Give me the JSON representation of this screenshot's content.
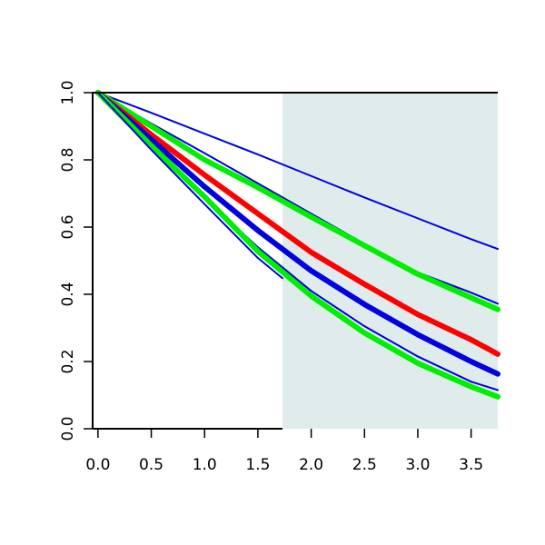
{
  "chart_data": {
    "type": "line",
    "title": "",
    "xlabel": "",
    "ylabel": "",
    "xlim": [
      -0.05,
      3.75
    ],
    "ylim": [
      0.0,
      1.0
    ],
    "x_ticks": [
      0.0,
      0.5,
      1.0,
      1.5,
      2.0,
      2.5,
      3.0,
      3.5
    ],
    "x_tick_labels": [
      "0.0",
      "0.5",
      "1.0",
      "1.5",
      "2.0",
      "2.5",
      "3.0",
      "3.5"
    ],
    "y_ticks": [
      0.0,
      0.2,
      0.4,
      0.6,
      0.8,
      1.0
    ],
    "y_tick_labels": [
      "0.0",
      "0.2",
      "0.4",
      "0.6",
      "0.8",
      "1.0"
    ],
    "shaded_region": {
      "x_from": 1.73,
      "x_to": 3.75,
      "color": "#e0ecec"
    },
    "colors": {
      "red": "#ff0000",
      "green": "#00ee00",
      "blue": "#0000e0"
    },
    "series": [
      {
        "color": "blue",
        "weight": "thin",
        "x": [
          0,
          0.5,
          1,
          1.5,
          2,
          2.5,
          3,
          3.5,
          3.75
        ],
        "y": [
          1.0,
          0.94,
          0.878,
          0.816,
          0.752,
          0.688,
          0.626,
          0.564,
          0.535
        ]
      },
      {
        "color": "blue",
        "weight": "thin",
        "x": [
          0,
          0.5,
          1,
          1.5,
          2,
          2.5,
          3,
          3.5,
          3.75
        ],
        "y": [
          1.0,
          0.908,
          0.82,
          0.73,
          0.64,
          0.55,
          0.465,
          0.405,
          0.372
        ]
      },
      {
        "color": "green",
        "weight": "thick",
        "x": [
          0,
          0.5,
          1,
          1.5,
          2,
          2.5,
          3,
          3.5,
          3.75
        ],
        "y": [
          1.0,
          0.9,
          0.8,
          0.718,
          0.63,
          0.545,
          0.46,
          0.39,
          0.355
        ]
      },
      {
        "color": "red",
        "weight": "thick",
        "x": [
          0,
          0.5,
          1,
          1.5,
          2,
          2.5,
          3,
          3.5,
          3.75
        ],
        "y": [
          1.0,
          0.875,
          0.755,
          0.64,
          0.525,
          0.43,
          0.34,
          0.265,
          0.222
        ]
      },
      {
        "color": "blue",
        "weight": "thick",
        "x": [
          0,
          0.5,
          1,
          1.5,
          2,
          2.5,
          3,
          3.5,
          3.75
        ],
        "y": [
          1.0,
          0.86,
          0.72,
          0.59,
          0.47,
          0.37,
          0.28,
          0.2,
          0.163
        ]
      },
      {
        "color": "blue",
        "weight": "thin",
        "x": [
          0,
          0.5,
          1,
          1.5,
          2,
          2.5,
          3,
          3.5,
          3.75
        ],
        "y": [
          1.0,
          0.84,
          0.685,
          0.54,
          0.41,
          0.305,
          0.215,
          0.14,
          0.115
        ]
      },
      {
        "color": "green",
        "weight": "thick",
        "x": [
          0,
          0.5,
          1,
          1.5,
          2,
          2.5,
          3,
          3.5,
          3.75
        ],
        "y": [
          1.0,
          0.842,
          0.69,
          0.528,
          0.395,
          0.285,
          0.195,
          0.125,
          0.095
        ]
      },
      {
        "color": "blue",
        "weight": "thin",
        "x": [
          0,
          0.5,
          1,
          1.5,
          1.73
        ],
        "y": [
          1.0,
          0.83,
          0.668,
          0.508,
          0.448
        ]
      }
    ]
  }
}
